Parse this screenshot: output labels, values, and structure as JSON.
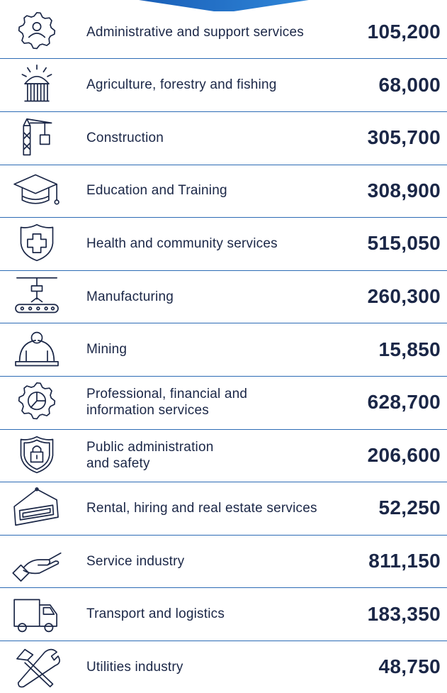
{
  "rows": [
    {
      "lines": [
        "Administrative and support services"
      ],
      "value": "105,200"
    },
    {
      "lines": [
        "Agriculture, forestry and fishing"
      ],
      "value": "68,000"
    },
    {
      "lines": [
        "Construction"
      ],
      "value": "305,700"
    },
    {
      "lines": [
        "Education and Training"
      ],
      "value": "308,900"
    },
    {
      "lines": [
        "Health and community services"
      ],
      "value": "515,050"
    },
    {
      "lines": [
        "Manufacturing"
      ],
      "value": "260,300"
    },
    {
      "lines": [
        "Mining"
      ],
      "value": "15,850"
    },
    {
      "lines": [
        "Professional, financial and",
        "information services"
      ],
      "value": "628,700"
    },
    {
      "lines": [
        "Public administration",
        "and safety"
      ],
      "value": "206,600"
    },
    {
      "lines": [
        "Rental, hiring and real estate services"
      ],
      "value": "52,250"
    },
    {
      "lines": [
        "Service industry"
      ],
      "value": "811,150"
    },
    {
      "lines": [
        "Transport and logistics"
      ],
      "value": "183,350"
    },
    {
      "lines": [
        "Utilities industry"
      ],
      "value": "48,750"
    }
  ]
}
